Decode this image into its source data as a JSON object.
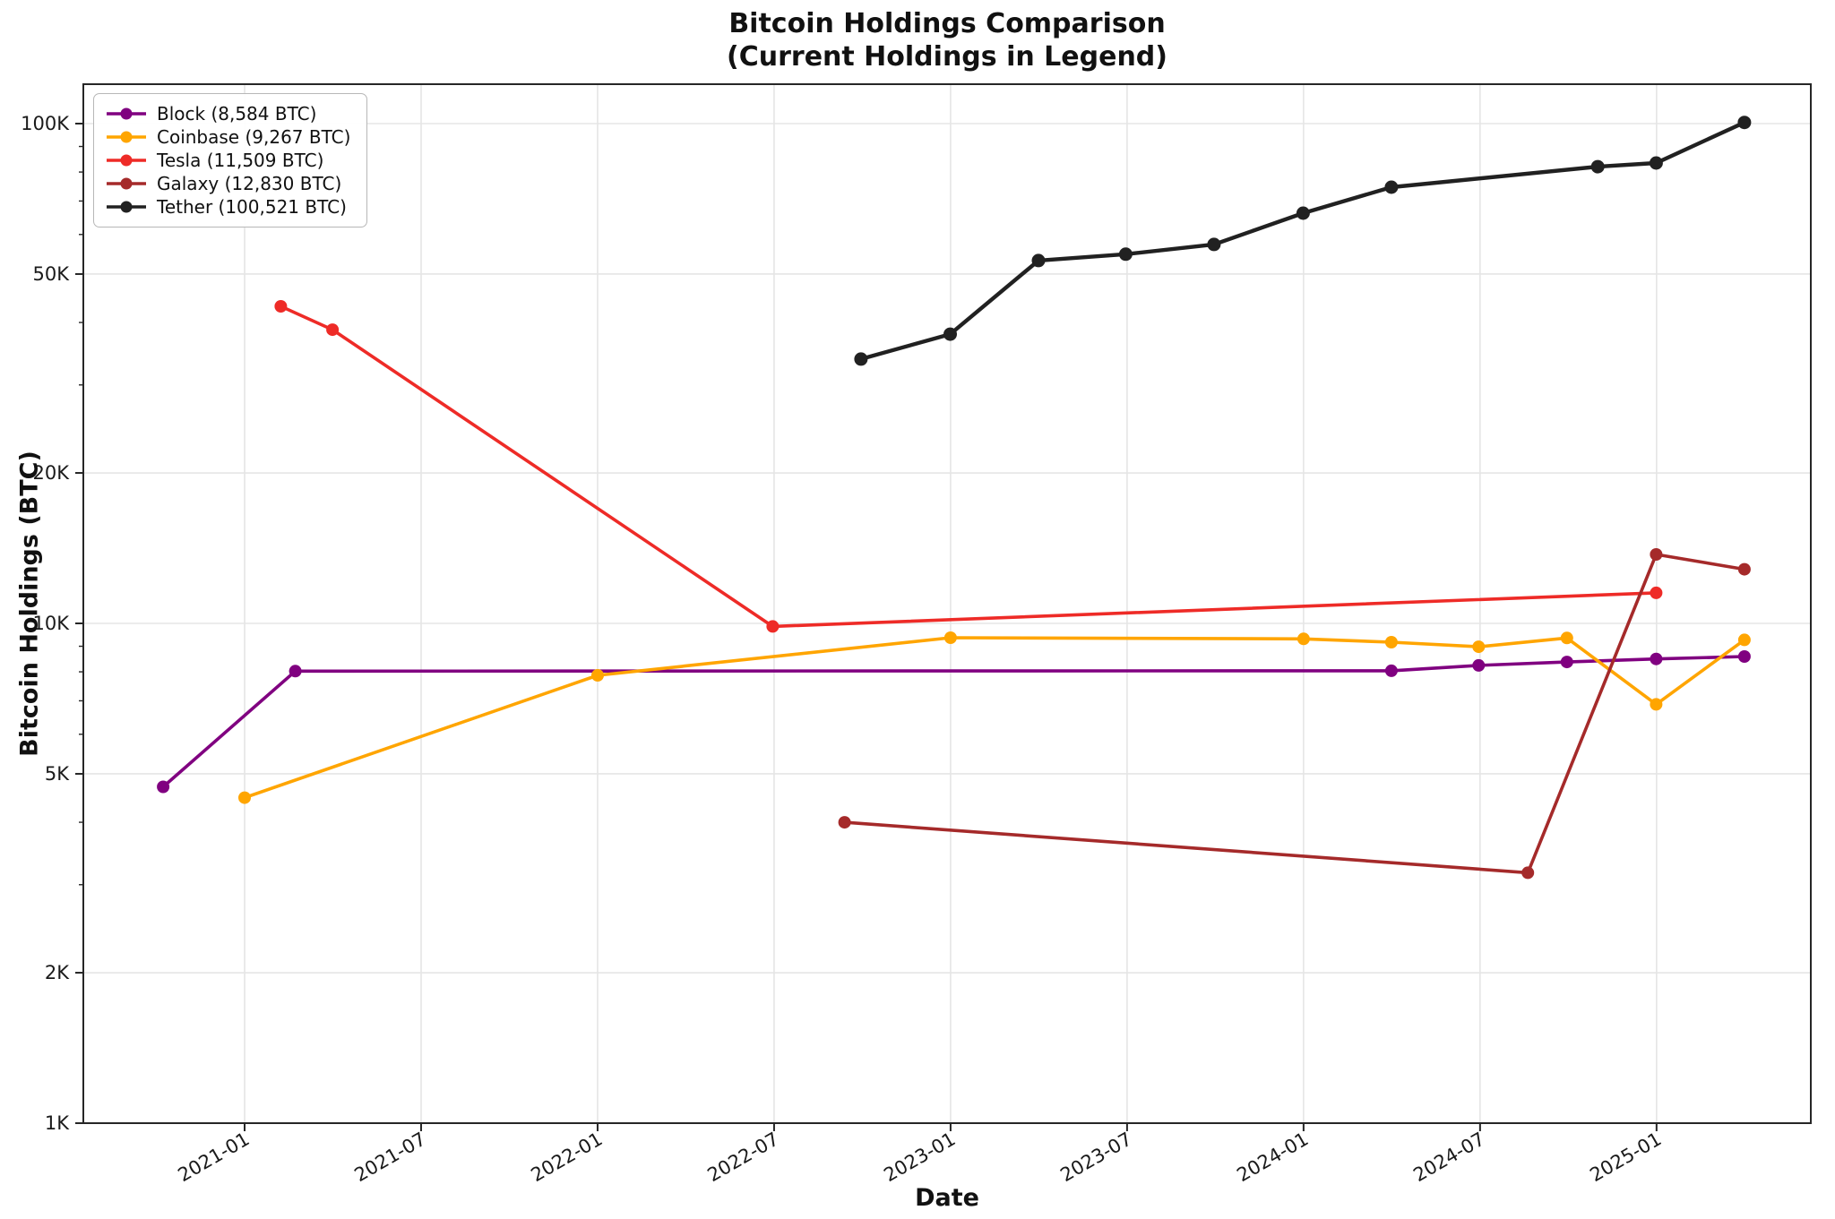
{
  "chart_data": {
    "type": "line",
    "title_line1": "Bitcoin Holdings Comparison",
    "title_line2": "(Current Holdings in Legend)",
    "xlabel": "Date",
    "ylabel": "Bitcoin Holdings (BTC)",
    "y_scale": "log",
    "ylim_btc": [
      1000,
      120000
    ],
    "x_range": [
      "2020-07-16",
      "2025-06-06"
    ],
    "grid": true,
    "legend_position": "upper-left",
    "x_tick_labels": [
      "2021-01",
      "2021-07",
      "2022-01",
      "2022-07",
      "2023-01",
      "2023-07",
      "2024-01",
      "2024-07",
      "2025-01"
    ],
    "y_tick_labels": [
      "100K",
      "50K",
      "20K",
      "10K",
      "5K",
      "2K",
      "1K"
    ],
    "y_tick_values": [
      100000,
      50000,
      20000,
      10000,
      5000,
      2000,
      1000
    ],
    "y_minor_tick_values": [
      3000,
      4000,
      6000,
      7000,
      8000,
      9000,
      30000,
      40000,
      60000,
      70000,
      80000,
      90000
    ],
    "series": [
      {
        "name": "Block",
        "legend_label": "Block (8,584 BTC)",
        "color": "#800080",
        "current_btc": 8584,
        "points": [
          [
            "2020-10-08",
            4709
          ],
          [
            "2021-02-23",
            8027
          ],
          [
            "2024-03-31",
            8038
          ],
          [
            "2024-06-30",
            8240
          ],
          [
            "2024-09-30",
            8370
          ],
          [
            "2024-12-31",
            8490
          ],
          [
            "2025-03-31",
            8584
          ]
        ]
      },
      {
        "name": "Coinbase",
        "legend_label": "Coinbase (9,267 BTC)",
        "color": "#FFA500",
        "current_btc": 9267,
        "points": [
          [
            "2021-01-01",
            4480
          ],
          [
            "2022-01-01",
            7870
          ],
          [
            "2023-01-01",
            9360
          ],
          [
            "2024-01-01",
            9310
          ],
          [
            "2024-03-31",
            9170
          ],
          [
            "2024-06-30",
            8980
          ],
          [
            "2024-09-30",
            9350
          ],
          [
            "2024-12-31",
            6885
          ],
          [
            "2025-03-31",
            9267
          ]
        ]
      },
      {
        "name": "Tesla",
        "legend_label": "Tesla (11,509 BTC)",
        "color": "#EE2B27",
        "current_btc": 11509,
        "points": [
          [
            "2021-02-08",
            43100
          ],
          [
            "2021-03-31",
            38700
          ],
          [
            "2022-06-30",
            9860
          ],
          [
            "2024-12-31",
            11509
          ]
        ]
      },
      {
        "name": "Galaxy",
        "legend_label": "Galaxy (12,830 BTC)",
        "color": "#A52A2A",
        "current_btc": 12830,
        "points": [
          [
            "2022-09-13",
            4000
          ],
          [
            "2024-08-20",
            3170
          ],
          [
            "2024-12-31",
            13740
          ],
          [
            "2025-03-31",
            12830
          ]
        ]
      },
      {
        "name": "Tether",
        "legend_label": "Tether (100,521 BTC)",
        "color": "#212121",
        "current_btc": 100521,
        "points": [
          [
            "2022-09-30",
            33800
          ],
          [
            "2022-12-31",
            37900
          ],
          [
            "2023-03-31",
            53200
          ],
          [
            "2023-06-30",
            54800
          ],
          [
            "2023-09-30",
            57300
          ],
          [
            "2023-12-31",
            66200
          ],
          [
            "2024-03-31",
            74600
          ],
          [
            "2024-11-01",
            82000
          ],
          [
            "2024-12-31",
            83400
          ],
          [
            "2025-03-31",
            100521
          ]
        ]
      }
    ]
  }
}
